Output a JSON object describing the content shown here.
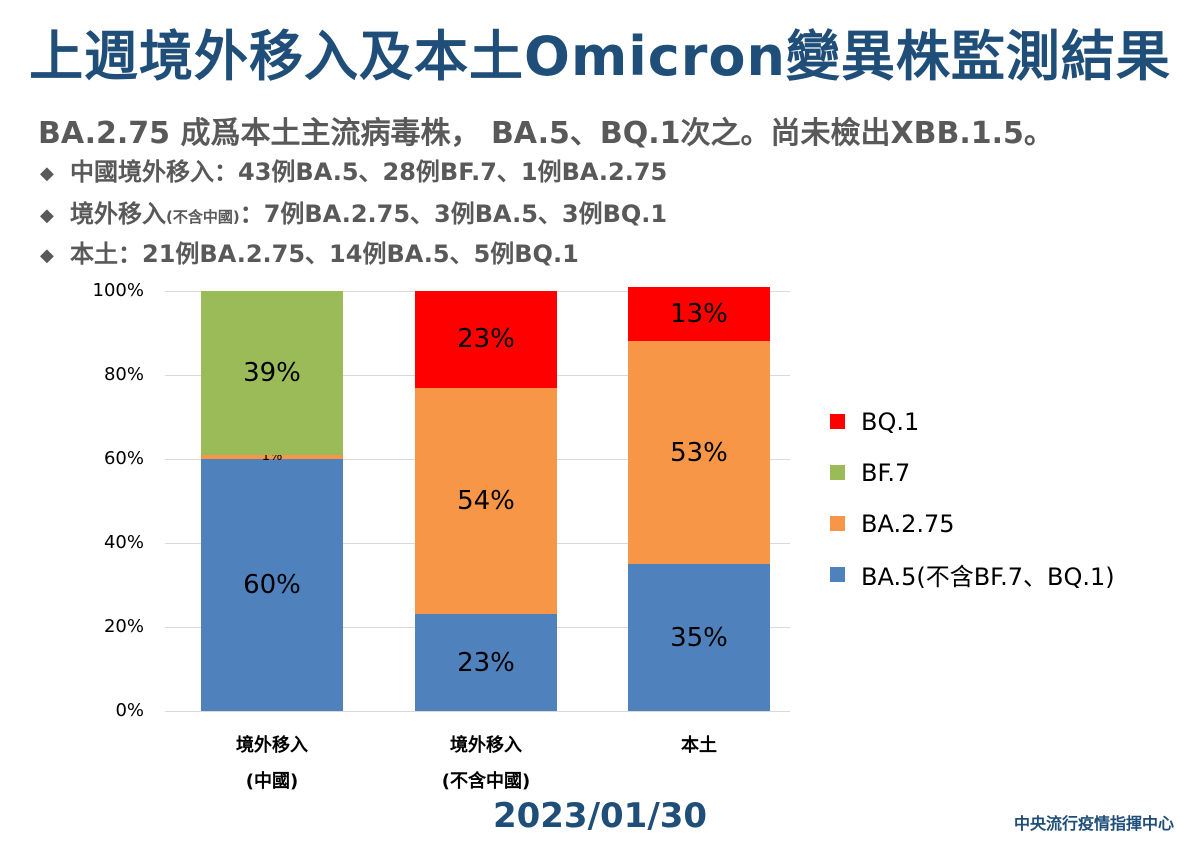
{
  "title": "上週境外移入及本土Omicron變異株監測結果",
  "headline": "BA.2.75 成爲本土主流病毒株， BA.5、BQ.1次之。尚未檢出XBB.1.5。",
  "bullets": [
    {
      "prefix": "中國境外移入",
      "small": "",
      "text": "：43例BA.5、28例BF.7、1例BA.2.75"
    },
    {
      "prefix": "境外移入",
      "small": "(不含中國)",
      "text": "：7例BA.2.75、3例BA.5、3例BQ.1"
    },
    {
      "prefix": "本土",
      "small": "",
      "text": "：21例BA.2.75、14例BA.5、5例BQ.1"
    }
  ],
  "bullet_icon": "diamond-icon",
  "colors": {
    "title": "#1f4e79",
    "BQ.1": "#ff0000",
    "BF.7": "#9bbb59",
    "BA.2.75": "#f79646",
    "BA.5": "#4f81bd"
  },
  "chart_data": {
    "type": "bar",
    "stacked": true,
    "percent": true,
    "title": "",
    "xlabel": "",
    "ylabel": "",
    "ylim": [
      0,
      100
    ],
    "yticks": [
      "0%",
      "20%",
      "40%",
      "60%",
      "80%",
      "100%"
    ],
    "grid": true,
    "legend_position": "right",
    "categories": [
      "境外移入\n(中國)",
      "境外移入\n(不含中國)",
      "本土"
    ],
    "category_lines": [
      [
        "境外移入",
        "(中國)"
      ],
      [
        "境外移入",
        "(不含中國)"
      ],
      [
        "本土",
        ""
      ]
    ],
    "series": [
      {
        "name": "BA.5(不含BF.7、BQ.1)",
        "color": "#4f81bd",
        "values": [
          60,
          23,
          35
        ]
      },
      {
        "name": "BA.2.75",
        "color": "#f79646",
        "values": [
          1,
          54,
          53
        ]
      },
      {
        "name": "BF.7",
        "color": "#9bbb59",
        "values": [
          39,
          0,
          0
        ]
      },
      {
        "name": "BQ.1",
        "color": "#ff0000",
        "values": [
          0,
          23,
          13
        ]
      }
    ],
    "labels": [
      [
        "60%",
        "1%",
        "39%",
        ""
      ],
      [
        "23%",
        "54%",
        "",
        "23%"
      ],
      [
        "35%",
        "53%",
        "",
        "13%"
      ]
    ],
    "legend": [
      "BQ.1",
      "BF.7",
      "BA.2.75",
      "BA.5(不含BF.7、BQ.1)"
    ]
  },
  "date": "2023/01/30",
  "source": "中央流行疫情指揮中心"
}
